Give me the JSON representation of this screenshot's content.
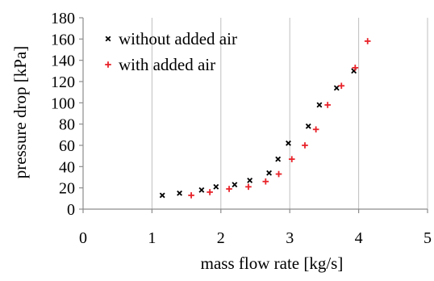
{
  "chart_data": {
    "type": "scatter",
    "title": "",
    "xlabel": "mass flow rate [kg/s]",
    "ylabel": "pressure drop  [kPa]",
    "xlim": [
      0,
      5
    ],
    "ylim": [
      0,
      180
    ],
    "x_ticks": [
      0,
      1,
      2,
      3,
      4,
      5
    ],
    "y_ticks": [
      0,
      20,
      40,
      60,
      80,
      100,
      120,
      140,
      160,
      180
    ],
    "grid": "vertical",
    "legend_position": "top-left",
    "series": [
      {
        "name": "without added air",
        "marker": "x",
        "color": "#000000",
        "points": [
          {
            "x": 1.15,
            "y": 13
          },
          {
            "x": 1.4,
            "y": 15
          },
          {
            "x": 1.72,
            "y": 18
          },
          {
            "x": 1.93,
            "y": 21
          },
          {
            "x": 2.2,
            "y": 23
          },
          {
            "x": 2.42,
            "y": 27
          },
          {
            "x": 2.7,
            "y": 34
          },
          {
            "x": 2.83,
            "y": 47
          },
          {
            "x": 2.98,
            "y": 62
          },
          {
            "x": 3.27,
            "y": 78
          },
          {
            "x": 3.43,
            "y": 98
          },
          {
            "x": 3.68,
            "y": 114
          },
          {
            "x": 3.93,
            "y": 130
          }
        ]
      },
      {
        "name": "with added air",
        "marker": "+",
        "color": "#e8232a",
        "points": [
          {
            "x": 1.57,
            "y": 13
          },
          {
            "x": 1.84,
            "y": 16
          },
          {
            "x": 2.12,
            "y": 19
          },
          {
            "x": 2.4,
            "y": 21
          },
          {
            "x": 2.65,
            "y": 26
          },
          {
            "x": 2.84,
            "y": 33
          },
          {
            "x": 3.03,
            "y": 47
          },
          {
            "x": 3.22,
            "y": 60
          },
          {
            "x": 3.38,
            "y": 75
          },
          {
            "x": 3.55,
            "y": 98
          },
          {
            "x": 3.75,
            "y": 116
          },
          {
            "x": 3.95,
            "y": 133
          },
          {
            "x": 4.13,
            "y": 158
          }
        ]
      }
    ]
  }
}
